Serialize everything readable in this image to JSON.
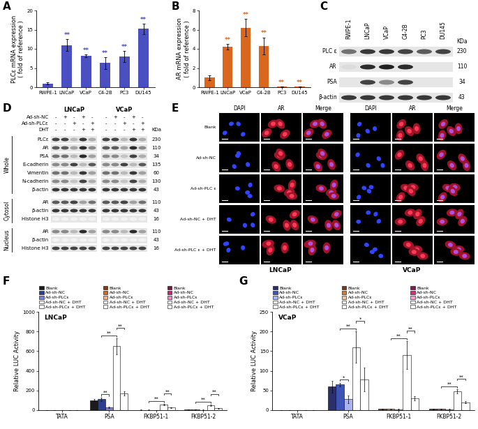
{
  "chart_data": [
    {
      "type": "bar",
      "title": "A",
      "y_label": "PLCε mRNA expression\n( fold of reference )",
      "categories": [
        "RWPE-1",
        "LNCaP",
        "VCaP",
        "C4-2B",
        "PC3",
        "DU145"
      ],
      "values": [
        1,
        11,
        8.2,
        6.3,
        8,
        15.2
      ],
      "errors": [
        0.3,
        1.6,
        0.4,
        1.5,
        1.5,
        1.3
      ],
      "significance": [
        null,
        "**",
        "**",
        "**",
        "**",
        "**"
      ],
      "color": "#4a4fc2",
      "ylim": [
        0,
        20
      ],
      "yticks": [
        0,
        5,
        10,
        15,
        20
      ]
    },
    {
      "type": "bar",
      "title": "B",
      "y_label": "AR mRNA expression\n( fold of reference )",
      "categories": [
        "RWPE-1",
        "LNCaP",
        "VCaP",
        "C4-2B",
        "PC3",
        "DU145"
      ],
      "values": [
        1,
        4.2,
        6.2,
        4.3,
        0.05,
        0.05
      ],
      "errors": [
        0.25,
        0.3,
        0.9,
        0.9,
        0.02,
        0.02
      ],
      "significance": [
        null,
        "**",
        "**",
        "**",
        "**",
        "**"
      ],
      "color": "#d9681e",
      "ylim": [
        0,
        8
      ],
      "yticks": [
        0,
        2,
        4,
        6,
        8
      ]
    },
    {
      "type": "bar",
      "title": "F",
      "subtitle": "LNCaP",
      "y_label": "Relative LUC Activity",
      "categories": [
        "TATA",
        "PSA",
        "FKBP51-1",
        "FKBP51-2"
      ],
      "series": [
        {
          "name": "Blank",
          "colors": [
            "#1b1b1b",
            "#1b1b1b",
            "#8a3a12",
            "#7a1640"
          ],
          "values": [
            0,
            100,
            3,
            5
          ],
          "errors": [
            0,
            10,
            1,
            1
          ]
        },
        {
          "name": "Ad-sh-NC",
          "colors": [
            "#2a3f8f",
            "#2a3f8f",
            "#d2691e",
            "#c8287a"
          ],
          "values": [
            0,
            110,
            3,
            5
          ],
          "errors": [
            0,
            20,
            1,
            1
          ]
        },
        {
          "name": "Ad-sh-PLCε",
          "colors": [
            "#7b7fd6",
            "#7b7fd6",
            "#f4b183",
            "#e98cc0"
          ],
          "values": [
            0,
            30,
            2,
            3
          ],
          "errors": [
            0,
            8,
            1,
            1
          ]
        },
        {
          "name": "Ad-sh-NC + DHT",
          "colors": [
            "#ffffff",
            "#ffffff",
            "#ffffff",
            "#ffffff"
          ],
          "values": [
            0,
            650,
            55,
            50
          ],
          "errors": [
            0,
            80,
            8,
            8
          ]
        },
        {
          "name": "Ad-sh-PLCε + DHT",
          "colors": [
            "#ffffff",
            "#ffffff",
            "#ffffff",
            "#ffffff"
          ],
          "values": [
            0,
            170,
            25,
            20
          ],
          "errors": [
            0,
            20,
            4,
            3
          ]
        }
      ],
      "comparisons": [
        {
          "category": "PSA",
          "between": [
            "Ad-sh-NC",
            "Ad-sh-PLCε"
          ],
          "label": "**"
        },
        {
          "category": "PSA",
          "between": [
            "Ad-sh-NC",
            "Ad-sh-NC + DHT"
          ],
          "label": "**"
        },
        {
          "category": "PSA",
          "between": [
            "Ad-sh-NC + DHT",
            "Ad-sh-PLCε + DHT"
          ],
          "label": "**"
        },
        {
          "category": "FKBP51-1",
          "between": [
            "Ad-sh-NC",
            "Ad-sh-NC + DHT"
          ],
          "label": "**"
        },
        {
          "category": "FKBP51-1",
          "between": [
            "Ad-sh-NC + DHT",
            "Ad-sh-PLCε + DHT"
          ],
          "label": "**"
        },
        {
          "category": "FKBP51-2",
          "between": [
            "Ad-sh-NC",
            "Ad-sh-NC + DHT"
          ],
          "label": "**"
        },
        {
          "category": "FKBP51-2",
          "between": [
            "Ad-sh-NC + DHT",
            "Ad-sh-PLCε + DHT"
          ],
          "label": "**"
        }
      ],
      "ylim": [
        0,
        1000
      ],
      "yticks": [
        0,
        200,
        400,
        600,
        800,
        1000
      ]
    },
    {
      "type": "bar",
      "title": "G",
      "subtitle": "VCaP",
      "y_label": "Relative LUC Activity",
      "categories": [
        "TATA",
        "PSA",
        "FKBP51-1",
        "FKBP51-2"
      ],
      "series": [
        {
          "name": "Blank",
          "colors": [
            "#2b2f6b",
            "#2b2f6b",
            "#7a3b1d",
            "#7b1f4f"
          ],
          "values": [
            0,
            60,
            3,
            3
          ],
          "errors": [
            0,
            15,
            1,
            1
          ]
        },
        {
          "name": "Ad-sh-NC",
          "colors": [
            "#3f55b5",
            "#3f55b5",
            "#e0762a",
            "#d0307f"
          ],
          "values": [
            0,
            65,
            3,
            3
          ],
          "errors": [
            0,
            5,
            1,
            1
          ]
        },
        {
          "name": "Ad-sh-PLCε",
          "colors": [
            "#a9b3ee",
            "#a9b3ee",
            "#f7c39a",
            "#f0a6cc"
          ],
          "values": [
            0,
            28,
            2,
            2
          ],
          "errors": [
            0,
            10,
            1,
            1
          ]
        },
        {
          "name": "Ad-sh-NC + DHT",
          "colors": [
            "#ffffff",
            "#ffffff",
            "#ffffff",
            "#ffffff"
          ],
          "values": [
            0,
            160,
            140,
            48
          ],
          "errors": [
            0,
            40,
            35,
            5
          ]
        },
        {
          "name": "Ad-sh-PLCε + DHT",
          "colors": [
            "#ffffff",
            "#ffffff",
            "#ffffff",
            "#ffffff"
          ],
          "values": [
            0,
            78,
            30,
            20
          ],
          "errors": [
            0,
            30,
            5,
            3
          ]
        }
      ],
      "comparisons": [
        {
          "category": "PSA",
          "between": [
            "Ad-sh-NC",
            "Ad-sh-PLCε"
          ],
          "label": "*"
        },
        {
          "category": "PSA",
          "between": [
            "Ad-sh-NC",
            "Ad-sh-NC + DHT"
          ],
          "label": "**"
        },
        {
          "category": "PSA",
          "between": [
            "Ad-sh-NC + DHT",
            "Ad-sh-PLCε + DHT"
          ],
          "label": "*"
        },
        {
          "category": "FKBP51-1",
          "between": [
            "Ad-sh-NC",
            "Ad-sh-NC + DHT"
          ],
          "label": "**"
        },
        {
          "category": "FKBP51-1",
          "between": [
            "Ad-sh-NC + DHT",
            "Ad-sh-PLCε + DHT"
          ],
          "label": "**"
        },
        {
          "category": "FKBP51-2",
          "between": [
            "Ad-sh-NC",
            "Ad-sh-NC + DHT"
          ],
          "label": "**"
        },
        {
          "category": "FKBP51-2",
          "between": [
            "Ad-sh-NC + DHT",
            "Ad-sh-PLCε + DHT"
          ],
          "label": "**"
        }
      ],
      "ylim": [
        0,
        250
      ],
      "yticks": [
        0,
        50,
        100,
        150,
        200,
        250
      ]
    }
  ],
  "panel_C": {
    "title": "C",
    "unit": "KDa",
    "lanes": [
      "RWPE-1",
      "LNCaP",
      "VCaP",
      "C4-2B",
      "PC3",
      "DU145"
    ],
    "rows": [
      {
        "name": "PLC ε",
        "kda": 230,
        "intensity": [
          0.6,
          0.85,
          0.85,
          0.8,
          0.7,
          0.8
        ]
      },
      {
        "name": "AR",
        "kda": 110,
        "intensity": [
          0.15,
          0.9,
          0.95,
          0.9,
          0,
          0
        ]
      },
      {
        "name": "PSA",
        "kda": 34,
        "intensity": [
          0,
          0.8,
          0.5,
          0.8,
          0,
          0
        ]
      },
      {
        "name": "β-actin",
        "kda": 43,
        "intensity": [
          0.85,
          0.85,
          0.85,
          0.85,
          0.85,
          0.85
        ]
      }
    ]
  },
  "panel_D": {
    "title": "D",
    "unit": "KDa",
    "cell_lines": [
      "LNCaP",
      "VCaP"
    ],
    "treatments": [
      {
        "name": "Ad-sh-NC",
        "signs": [
          "-",
          "+",
          "-",
          "+",
          "-"
        ]
      },
      {
        "name": "Ad-sh-PLCε",
        "signs": [
          "-",
          "-",
          "+",
          "-",
          "+"
        ]
      },
      {
        "name": "DHT",
        "signs": [
          "-",
          "-",
          "-",
          "+",
          "+"
        ]
      }
    ],
    "sections": [
      {
        "name": "Whole",
        "rows": [
          {
            "name": "PLCε",
            "kda": 230,
            "intensity": [
              0.8,
              0.8,
              0.3,
              0.85,
              0.35,
              0.8,
              0.8,
              0.3,
              0.85,
              0.35
            ]
          },
          {
            "name": "AR",
            "kda": 110,
            "intensity": [
              0.7,
              0.7,
              0.4,
              0.9,
              0.5,
              0.7,
              0.7,
              0.4,
              0.9,
              0.5
            ]
          },
          {
            "name": "PSA",
            "kda": 34,
            "intensity": [
              0.6,
              0.6,
              0.3,
              0.9,
              0.4,
              0.5,
              0.5,
              0.25,
              0.8,
              0.35
            ]
          },
          {
            "name": "E-cadherin",
            "kda": 135,
            "intensity": [
              0.5,
              0.5,
              0.8,
              0.3,
              0.7,
              0.5,
              0.5,
              0.8,
              0.3,
              0.7
            ]
          },
          {
            "name": "Vimentin",
            "kda": 60,
            "intensity": [
              0.6,
              0.6,
              0.3,
              0.85,
              0.4,
              0.6,
              0.6,
              0.3,
              0.85,
              0.4
            ]
          },
          {
            "name": "N-cadherin",
            "kda": 130,
            "intensity": [
              0.5,
              0.5,
              0.25,
              0.8,
              0.35,
              0.5,
              0.5,
              0.25,
              0.8,
              0.35
            ]
          },
          {
            "name": "β-actin",
            "kda": 43,
            "intensity": [
              0.85,
              0.85,
              0.85,
              0.85,
              0.85,
              0.85,
              0.85,
              0.85,
              0.85,
              0.85
            ]
          }
        ]
      },
      {
        "name": "Cytosol",
        "rows": [
          {
            "name": "AR",
            "kda": 110,
            "intensity": [
              0.7,
              0.7,
              0.8,
              0.4,
              0.6,
              0.7,
              0.7,
              0.8,
              0.4,
              0.6
            ]
          },
          {
            "name": "β-actin",
            "kda": 43,
            "intensity": [
              0.85,
              0.85,
              0.85,
              0.85,
              0.85,
              0.85,
              0.85,
              0.85,
              0.85,
              0.85
            ]
          },
          {
            "name": "Histone H3",
            "kda": 16,
            "intensity": [
              0.05,
              0.05,
              0.05,
              0.05,
              0.05,
              0.05,
              0.05,
              0.05,
              0.05,
              0.05
            ]
          }
        ]
      },
      {
        "name": "Nucleus",
        "rows": [
          {
            "name": "AR",
            "kda": 110,
            "intensity": [
              0.5,
              0.5,
              0.3,
              0.9,
              0.4,
              0.5,
              0.5,
              0.3,
              0.9,
              0.4
            ]
          },
          {
            "name": "β-actin",
            "kda": 43,
            "intensity": [
              0.05,
              0.05,
              0.05,
              0.05,
              0.05,
              0.05,
              0.05,
              0.05,
              0.05,
              0.05
            ]
          },
          {
            "name": "Histone H3",
            "kda": 16,
            "intensity": [
              0.8,
              0.8,
              0.8,
              0.8,
              0.8,
              0.8,
              0.8,
              0.8,
              0.8,
              0.8
            ]
          }
        ]
      }
    ]
  },
  "panel_E": {
    "title": "E",
    "cell_lines": [
      "LNCaP",
      "VCaP"
    ],
    "channels": [
      "DAPI",
      "AR",
      "Merge"
    ],
    "rows": [
      "Blank",
      "Ad-sh-NC",
      "Ad-sh-PLC ε",
      "Ad-sh-NC + DHT",
      "Ad-sh-PLC ε + DHT"
    ]
  }
}
